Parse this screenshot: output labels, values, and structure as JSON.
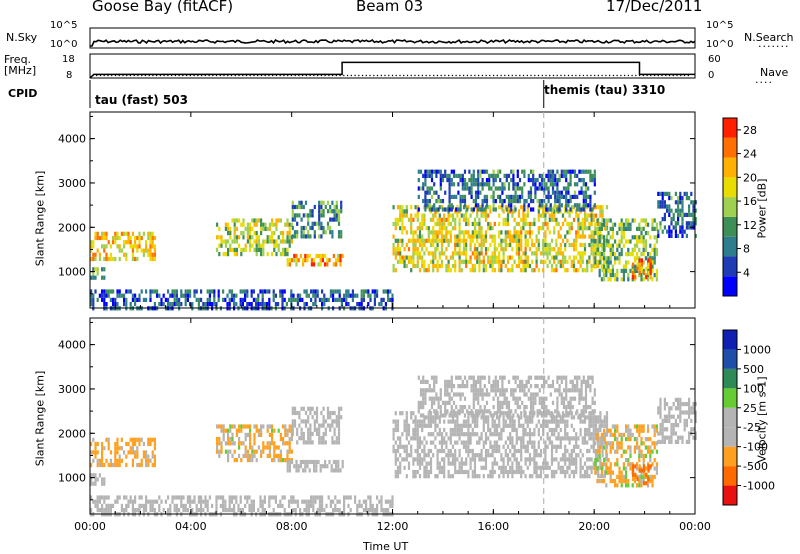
{
  "header": {
    "station": "Goose Bay (fitACF)",
    "beam": "Beam 03",
    "date": "17/Dec/2011"
  },
  "noise_panel": {
    "left_label": "N.Sky",
    "left_ticks": [
      "10^5",
      "10^0"
    ],
    "right_label": "N.Search",
    "right_ticks": [
      "10^5",
      "10^0"
    ]
  },
  "freq_panel": {
    "left_label_1": "Freq.",
    "left_label_2": "[MHz]",
    "left_ticks": [
      "18",
      "8"
    ],
    "right_label": "Nave",
    "right_ticks": [
      "60",
      "0"
    ],
    "cpid_label": "CPID",
    "cpid_entries": [
      {
        "name": "tau (fast) 503"
      },
      {
        "name": "themis (tau) 3310"
      }
    ]
  },
  "colors": {
    "power": [
      "#0000ff",
      "#1e3cb4",
      "#2e7d8c",
      "#3e8f57",
      "#a0d050",
      "#e8dc00",
      "#ffb000",
      "#ff7000",
      "#ff2000"
    ],
    "velocity": [
      "#e81010",
      "#ff6a00",
      "#ffa020",
      "#b4b4b4",
      "#b4b4b4",
      "#66cc33",
      "#2e8b57",
      "#1e4fa8",
      "#1020b0"
    ]
  },
  "chart_data": [
    {
      "type": "heatmap",
      "title": "",
      "variable": "Power",
      "xlabel": "Time UT",
      "ylabel": "Slant Range [km]",
      "colorbar_label": "Power [dB]",
      "colorbar_ticks": [
        "28",
        "24",
        "20",
        "16",
        "12",
        "8",
        "4"
      ],
      "colorbar_range": [
        0,
        30
      ],
      "x_ticks": [
        "00:00",
        "04:00",
        "08:00",
        "12:00",
        "16:00",
        "20:00",
        "00:00"
      ],
      "xlim_hours": [
        0,
        24
      ],
      "y_ticks": [
        "4000",
        "3000",
        "2000",
        "1000"
      ],
      "ylim_km": [
        180,
        4600
      ],
      "regions": [
        {
          "t": [
            0.0,
            2.6
          ],
          "r": [
            1300,
            1900
          ],
          "value": 20
        },
        {
          "t": [
            0.0,
            0.6
          ],
          "r": [
            900,
            1100
          ],
          "value": 12
        },
        {
          "t": [
            5.0,
            8.0
          ],
          "r": [
            1400,
            2200
          ],
          "value": 16
        },
        {
          "t": [
            7.8,
            10.0
          ],
          "r": [
            1200,
            1400
          ],
          "value": 22
        },
        {
          "t": [
            8.0,
            10.0
          ],
          "r": [
            1800,
            2600
          ],
          "value": 10
        },
        {
          "t": [
            0.0,
            12.0
          ],
          "r": [
            200,
            600
          ],
          "value": 6
        },
        {
          "t": [
            12.0,
            20.5
          ],
          "r": [
            1000,
            2500
          ],
          "value": 18
        },
        {
          "t": [
            13.0,
            20.0
          ],
          "r": [
            2400,
            3300
          ],
          "value": 8
        },
        {
          "t": [
            20.0,
            22.5
          ],
          "r": [
            800,
            2200
          ],
          "value": 14
        },
        {
          "t": [
            21.5,
            22.2
          ],
          "r": [
            900,
            1300
          ],
          "value": 24
        },
        {
          "t": [
            22.5,
            24.0
          ],
          "r": [
            1800,
            2800
          ],
          "value": 8
        }
      ],
      "marker_hour": 18.0
    },
    {
      "type": "heatmap",
      "title": "",
      "variable": "Velocity",
      "xlabel": "Time UT",
      "ylabel": "Slant Range [km]",
      "colorbar_label": "Velocity [m s-1]",
      "colorbar_ticks": [
        "1000",
        "500",
        "100",
        "25",
        "-25",
        "-100",
        "-500",
        "-1000"
      ],
      "colorbar_range": [
        -1000,
        1000
      ],
      "x_ticks": [
        "00:00",
        "04:00",
        "08:00",
        "12:00",
        "16:00",
        "20:00",
        "00:00"
      ],
      "xlim_hours": [
        0,
        24
      ],
      "y_ticks": [
        "4000",
        "3000",
        "2000",
        "1000"
      ],
      "ylim_km": [
        180,
        4600
      ],
      "regions": [
        {
          "t": [
            0.0,
            2.6
          ],
          "r": [
            1300,
            1900
          ],
          "value": -200
        },
        {
          "t": [
            0.0,
            0.6
          ],
          "r": [
            900,
            1100
          ],
          "value": 0
        },
        {
          "t": [
            5.0,
            8.0
          ],
          "r": [
            1400,
            2200
          ],
          "value": -150
        },
        {
          "t": [
            7.8,
            10.0
          ],
          "r": [
            1200,
            1400
          ],
          "value": 0
        },
        {
          "t": [
            8.0,
            10.0
          ],
          "r": [
            1800,
            2600
          ],
          "value": 0
        },
        {
          "t": [
            0.0,
            12.0
          ],
          "r": [
            200,
            600
          ],
          "value": -50
        },
        {
          "t": [
            12.0,
            20.5
          ],
          "r": [
            1000,
            2500
          ],
          "value": 0
        },
        {
          "t": [
            13.0,
            20.0
          ],
          "r": [
            2400,
            3300
          ],
          "value": 0
        },
        {
          "t": [
            20.0,
            22.5
          ],
          "r": [
            800,
            2200
          ],
          "value": -120
        },
        {
          "t": [
            21.5,
            22.2
          ],
          "r": [
            900,
            1300
          ],
          "value": -600
        },
        {
          "t": [
            22.5,
            24.0
          ],
          "r": [
            1800,
            2800
          ],
          "value": 0
        }
      ],
      "marker_hour": 18.0
    }
  ],
  "freq_series": {
    "hours": [
      0.0,
      0.15,
      10.0,
      10.0,
      21.8,
      21.8,
      24.0
    ],
    "freq_mhz": [
      8,
      9.5,
      9.5,
      14.5,
      14.5,
      9.5,
      9.5
    ]
  }
}
